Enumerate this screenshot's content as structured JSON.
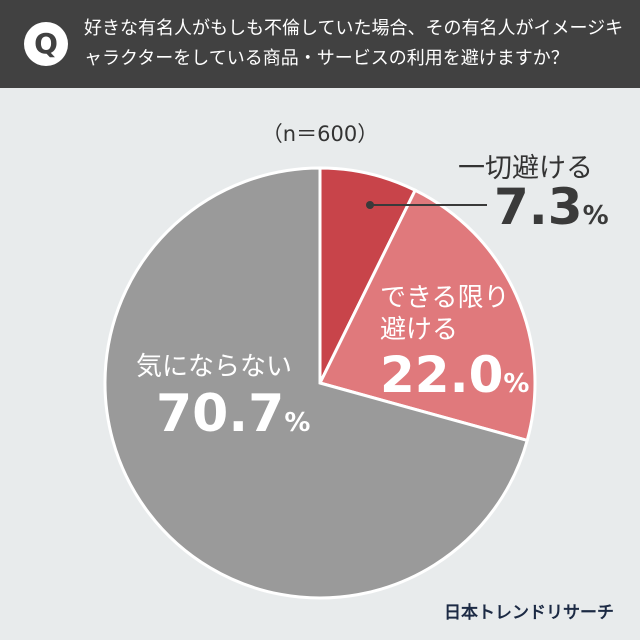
{
  "header": {
    "q_badge": "Q",
    "question": "好きな有名人がもしも不倫していた場合、その有名人がイメージキャラクターをしている商品・サービスの利用を避けますか？"
  },
  "chart_data": {
    "type": "pie",
    "title": "",
    "sample_note": "（n＝600）",
    "slices": [
      {
        "label": "一切避ける",
        "value": 7.3,
        "display": "7.3",
        "color": "#c8444a"
      },
      {
        "label": "できる限り避ける",
        "label_lines": [
          "できる限り",
          "避ける"
        ],
        "value": 22.0,
        "display": "22.0",
        "color": "#e0797c"
      },
      {
        "label": "気にならない",
        "value": 70.7,
        "display": "70.7",
        "color": "#9a9a9a"
      }
    ],
    "unit": "%",
    "start": "top, clockwise"
  },
  "brand": "日本トレンドリサーチ"
}
